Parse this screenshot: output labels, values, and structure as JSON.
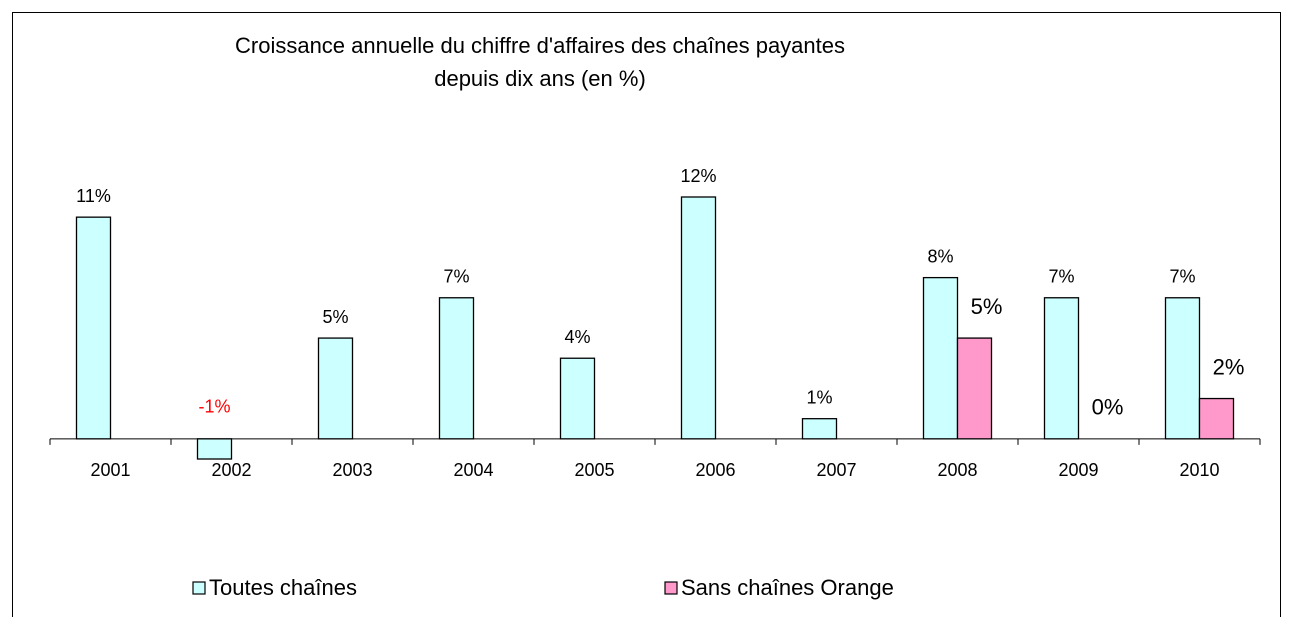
{
  "chart_data": {
    "type": "bar",
    "title": [
      "Croissance annuelle du chiffre d'affaires des chaînes payantes",
      "depuis dix ans (en %)"
    ],
    "categories": [
      "2001",
      "2002",
      "2003",
      "2004",
      "2005",
      "2006",
      "2007",
      "2008",
      "2009",
      "2010"
    ],
    "series": [
      {
        "name": "Toutes chaînes",
        "color": "#ccffff",
        "values": [
          11,
          -1,
          5,
          7,
          4,
          12,
          1,
          8,
          7,
          7
        ],
        "value_labels": [
          "11%",
          "-1%",
          "5%",
          "7%",
          "4%",
          "12%",
          "1%",
          "8%",
          "7%",
          "7%"
        ]
      },
      {
        "name": "Sans chaînes Orange",
        "color": "#ff99cc",
        "values": [
          null,
          null,
          null,
          null,
          null,
          null,
          null,
          5,
          0,
          2
        ],
        "value_labels": [
          null,
          null,
          null,
          null,
          null,
          null,
          null,
          "5%",
          "0%",
          "2%"
        ]
      }
    ],
    "ylim": [
      -1,
      12
    ],
    "negative_label_color": "#ff0000",
    "legend": "bottom"
  }
}
